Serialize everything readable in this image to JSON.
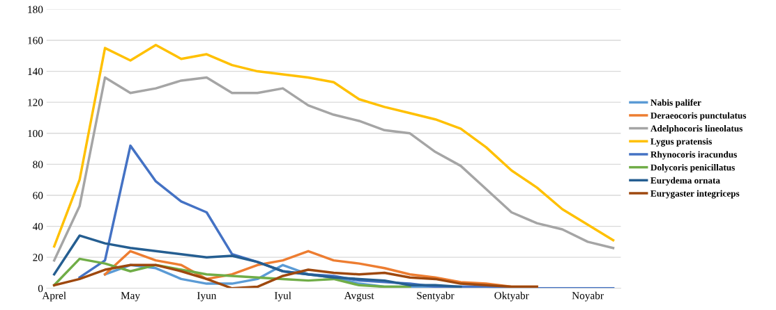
{
  "chart_data": {
    "type": "line",
    "categories": [
      "Aprel",
      null,
      null,
      "May",
      null,
      null,
      "Iyun",
      null,
      null,
      "Iyul",
      null,
      null,
      "Avgust",
      null,
      null,
      "Sentyabr",
      null,
      null,
      "Oktyabr",
      null,
      null,
      "Noyabr",
      null
    ],
    "series": [
      {
        "name": "Nabis palifer",
        "color": "#5b9bd5",
        "values": [
          null,
          null,
          9,
          15,
          13,
          6,
          3,
          3,
          6,
          15,
          9,
          7,
          3,
          1,
          1,
          1,
          1,
          1,
          0,
          0,
          0,
          0,
          0
        ]
      },
      {
        "name": "Deraeocoris punctulatus",
        "color": "#ed7d31",
        "values": [
          null,
          null,
          9,
          24,
          18,
          15,
          6,
          9,
          15,
          18,
          24,
          18,
          16,
          13,
          9,
          7,
          4,
          3,
          1,
          1,
          null,
          null,
          null
        ]
      },
      {
        "name": "Adelphocoris lineolatus",
        "color": "#a5a5a5",
        "values": [
          18,
          53,
          136,
          126,
          129,
          134,
          136,
          126,
          126,
          129,
          118,
          112,
          108,
          102,
          100,
          88,
          79,
          64,
          49,
          42,
          38,
          30,
          26
        ]
      },
      {
        "name": "Lygus pratensis",
        "color": "#ffc000",
        "values": [
          27,
          70,
          155,
          147,
          157,
          148,
          151,
          144,
          140,
          138,
          136,
          133,
          122,
          117,
          113,
          109,
          103,
          91,
          76,
          65,
          51,
          41,
          31
        ]
      },
      {
        "name": "Rhynocoris iracundus",
        "color": "#4472c4",
        "values": [
          null,
          7,
          18,
          92,
          69,
          56,
          49,
          22,
          17,
          11,
          9,
          8,
          5,
          4,
          3,
          1,
          1,
          1,
          0,
          0,
          0,
          0,
          0
        ]
      },
      {
        "name": "Dolycoris penicillatus",
        "color": "#70ad47",
        "values": [
          2,
          19,
          16,
          11,
          15,
          12,
          9,
          8,
          7,
          6,
          5,
          6,
          2,
          1,
          1,
          null,
          null,
          null,
          null,
          null,
          null,
          null,
          null
        ]
      },
      {
        "name": "Eurydema ornata",
        "color": "#255e91",
        "values": [
          9,
          34,
          29,
          26,
          24,
          22,
          20,
          21,
          17,
          11,
          9,
          7,
          6,
          5,
          2,
          2,
          1,
          null,
          null,
          null,
          null,
          null,
          null
        ]
      },
      {
        "name": "Eurygaster integriceps",
        "color": "#9e480e",
        "values": [
          2,
          6,
          12,
          15,
          15,
          11,
          6,
          0,
          1,
          8,
          12,
          10,
          9,
          10,
          7,
          6,
          3,
          2,
          1,
          1,
          null,
          null,
          null
        ]
      }
    ],
    "ylim": [
      0,
      180
    ],
    "yticks": [
      0,
      20,
      40,
      60,
      80,
      100,
      120,
      140,
      160,
      180
    ],
    "grid": "y",
    "legend": "right",
    "marker": "none",
    "line_style": "solid"
  }
}
